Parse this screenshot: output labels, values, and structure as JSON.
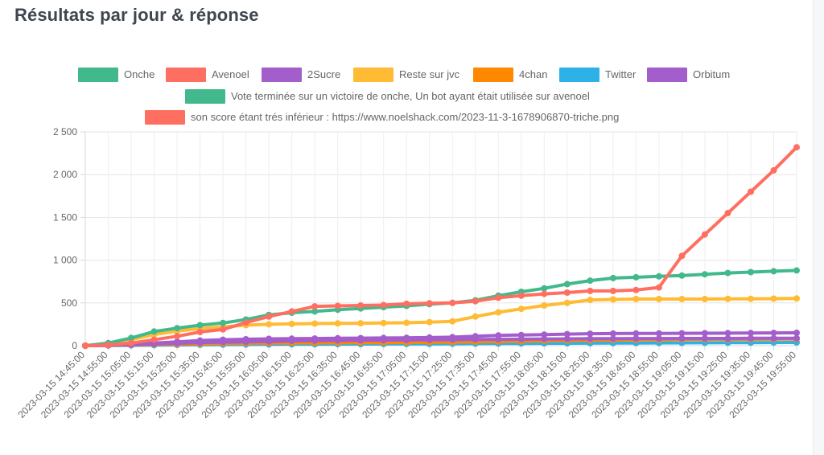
{
  "page": {
    "title": "Résultats par jour & réponse"
  },
  "chart_data": {
    "type": "line",
    "title": "Résultats par jour & réponse",
    "xlabel": "",
    "ylabel": "",
    "ylim": [
      0,
      2500
    ],
    "yticks": [
      0,
      500,
      1000,
      1500,
      2000,
      2500
    ],
    "ytick_labels": [
      "0",
      "500",
      "1 000",
      "1 500",
      "2 000",
      "2 500"
    ],
    "grid": true,
    "legend_position": "top",
    "x": [
      "2023-03-15 14:45:00",
      "2023-03-15 14:55:00",
      "2023-03-15 15:05:00",
      "2023-03-15 15:15:00",
      "2023-03-15 15:25:00",
      "2023-03-15 15:35:00",
      "2023-03-15 15:45:00",
      "2023-03-15 15:55:00",
      "2023-03-15 16:05:00",
      "2023-03-15 16:15:00",
      "2023-03-15 16:25:00",
      "2023-03-15 16:35:00",
      "2023-03-15 16:45:00",
      "2023-03-15 16:55:00",
      "2023-03-15 17:05:00",
      "2023-03-15 17:15:00",
      "2023-03-15 17:25:00",
      "2023-03-15 17:35:00",
      "2023-03-15 17:45:00",
      "2023-03-15 17:55:00",
      "2023-03-15 18:05:00",
      "2023-03-15 18:15:00",
      "2023-03-15 18:25:00",
      "2023-03-15 18:35:00",
      "2023-03-15 18:45:00",
      "2023-03-15 18:55:00",
      "2023-03-15 19:05:00",
      "2023-03-15 19:15:00",
      "2023-03-15 19:25:00",
      "2023-03-15 19:35:00",
      "2023-03-15 19:45:00",
      "2023-03-15 19:55:00"
    ],
    "series": [
      {
        "name": "Onche",
        "color": "#42b98c",
        "values": [
          0,
          30,
          90,
          165,
          205,
          240,
          265,
          305,
          360,
          385,
          400,
          420,
          435,
          450,
          465,
          485,
          500,
          530,
          585,
          630,
          670,
          720,
          760,
          790,
          800,
          810,
          820,
          835,
          850,
          860,
          870,
          880
        ]
      },
      {
        "name": "Avenoel",
        "color": "#ff6f61",
        "values": [
          0,
          8,
          30,
          70,
          110,
          160,
          190,
          270,
          340,
          400,
          460,
          465,
          470,
          475,
          490,
          495,
          500,
          520,
          560,
          585,
          605,
          620,
          640,
          640,
          650,
          680,
          1050,
          1300,
          1550,
          1800,
          2050,
          2320
        ]
      },
      {
        "name": "2Sucre",
        "color": "#a45ecb",
        "values": [
          0,
          5,
          10,
          20,
          28,
          35,
          40,
          45,
          50,
          55,
          58,
          60,
          62,
          64,
          66,
          68,
          70,
          72,
          74,
          76,
          78,
          80,
          82,
          83,
          84,
          84,
          85,
          85,
          85,
          86,
          86,
          86
        ]
      },
      {
        "name": "Reste sur jvc",
        "color": "#ffbb33",
        "values": [
          0,
          20,
          70,
          130,
          170,
          200,
          220,
          240,
          250,
          255,
          258,
          260,
          262,
          265,
          268,
          275,
          285,
          340,
          390,
          430,
          470,
          500,
          535,
          540,
          545,
          545,
          545,
          545,
          547,
          548,
          550,
          552
        ]
      },
      {
        "name": "4chan",
        "color": "#ff8800",
        "values": [
          0,
          3,
          8,
          12,
          16,
          20,
          24,
          28,
          30,
          32,
          33,
          34,
          35,
          36,
          38,
          40,
          42,
          45,
          48,
          52,
          56,
          60,
          63,
          66,
          68,
          70,
          72,
          73,
          74,
          75,
          76,
          78
        ]
      },
      {
        "name": "Twitter",
        "color": "#2eb1e6",
        "values": [
          0,
          2,
          4,
          6,
          8,
          10,
          12,
          14,
          15,
          16,
          17,
          18,
          19,
          20,
          21,
          22,
          23,
          24,
          25,
          26,
          27,
          28,
          29,
          30,
          31,
          32,
          33,
          34,
          35,
          36,
          37,
          38
        ]
      },
      {
        "name": "Orbitum",
        "color": "#a45ecb",
        "values": [
          0,
          6,
          15,
          30,
          45,
          60,
          70,
          75,
          80,
          82,
          84,
          86,
          88,
          90,
          92,
          95,
          100,
          110,
          120,
          125,
          130,
          135,
          140,
          142,
          143,
          144,
          145,
          146,
          147,
          148,
          149,
          150
        ]
      }
    ],
    "annotations": [
      {
        "label": "Vote terminée sur un victoire de onche, Un bot ayant était utilisée sur avenoel",
        "color": "#42b98c"
      },
      {
        "label": "son score étant trés inférieur  : https://www.noelshack.com/2023-11-3-1678906870-triche.png",
        "color": "#ff6f61"
      }
    ]
  }
}
